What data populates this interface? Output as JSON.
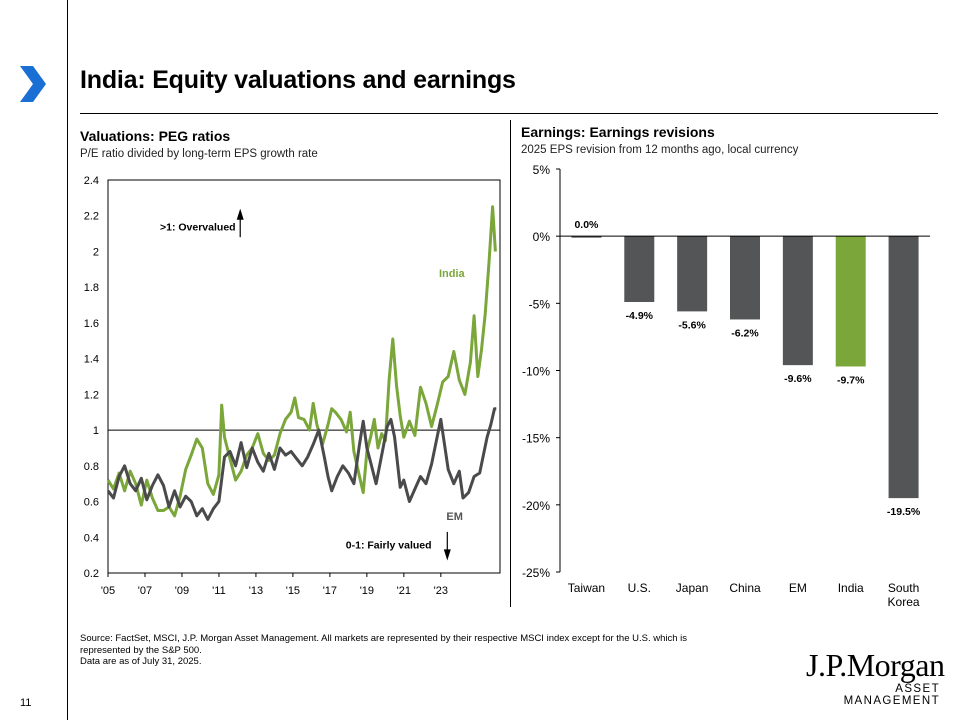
{
  "page": {
    "title": "India: Equity valuations and earnings",
    "page_number": "11",
    "source": [
      "Source: FactSet, MSCI, J.P. Morgan Asset Management. All markets are represented by their respective MSCI index except for the U.S. which is",
      "represented by the S&P 500.",
      "Data are as of July 31, 2025."
    ],
    "logo_main": "J.P.Morgan",
    "logo_sub": "ASSET MANAGEMENT",
    "colors": {
      "accent": "#1a6fd4",
      "india": "#7aa63a",
      "em": "#4a4a4c",
      "bar_grey": "#545557"
    }
  },
  "left": {
    "title": "Valuations: PEG ratios",
    "subtitle": "P/E ratio divided by long-term EPS growth rate"
  },
  "right": {
    "title": "Earnings: Earnings revisions",
    "subtitle": "2025 EPS revision from 12 months ago, local currency"
  },
  "chart_data": [
    {
      "type": "line",
      "title": "Valuations: PEG ratios",
      "ylim": [
        0.2,
        2.4
      ],
      "yticks": [
        "2.4",
        "2.2",
        "2",
        "1.8",
        "1.6",
        "1.4",
        "1.2",
        "1",
        "0.8",
        "0.6",
        "0.4",
        "0.2"
      ],
      "xlim": [
        2005,
        2026.2
      ],
      "xticks": [
        "'05",
        "'07",
        "'09",
        "'11",
        "'13",
        "'15",
        "'17",
        "'19",
        "'21",
        "'23"
      ],
      "reference_line": 1,
      "annotations": {
        "overvalued": ">1: Overvalued",
        "fairly_valued": "0-1: Fairly valued"
      },
      "series": [
        {
          "name": "India",
          "color": "#7aa63a",
          "points": [
            [
              2005.0,
              0.72
            ],
            [
              2005.3,
              0.67
            ],
            [
              2005.6,
              0.76
            ],
            [
              2005.9,
              0.66
            ],
            [
              2006.2,
              0.77
            ],
            [
              2006.5,
              0.7
            ],
            [
              2006.8,
              0.58
            ],
            [
              2007.1,
              0.72
            ],
            [
              2007.4,
              0.62
            ],
            [
              2007.7,
              0.55
            ],
            [
              2008.0,
              0.55
            ],
            [
              2008.3,
              0.57
            ],
            [
              2008.6,
              0.52
            ],
            [
              2008.9,
              0.63
            ],
            [
              2009.2,
              0.78
            ],
            [
              2009.5,
              0.86
            ],
            [
              2009.8,
              0.95
            ],
            [
              2010.1,
              0.9
            ],
            [
              2010.4,
              0.7
            ],
            [
              2010.7,
              0.64
            ],
            [
              2011.0,
              0.75
            ],
            [
              2011.15,
              1.14
            ],
            [
              2011.3,
              0.96
            ],
            [
              2011.6,
              0.84
            ],
            [
              2011.9,
              0.72
            ],
            [
              2012.2,
              0.77
            ],
            [
              2012.5,
              0.86
            ],
            [
              2012.8,
              0.9
            ],
            [
              2013.1,
              0.98
            ],
            [
              2013.4,
              0.87
            ],
            [
              2013.7,
              0.83
            ],
            [
              2014.0,
              0.86
            ],
            [
              2014.3,
              0.98
            ],
            [
              2014.6,
              1.06
            ],
            [
              2014.9,
              1.1
            ],
            [
              2015.1,
              1.18
            ],
            [
              2015.3,
              1.07
            ],
            [
              2015.6,
              1.06
            ],
            [
              2015.9,
              1.0
            ],
            [
              2016.1,
              1.15
            ],
            [
              2016.3,
              1.03
            ],
            [
              2016.6,
              0.92
            ],
            [
              2016.9,
              1.03
            ],
            [
              2017.1,
              1.12
            ],
            [
              2017.3,
              1.1
            ],
            [
              2017.6,
              1.06
            ],
            [
              2017.9,
              0.99
            ],
            [
              2018.1,
              1.1
            ],
            [
              2018.3,
              0.88
            ],
            [
              2018.6,
              0.74
            ],
            [
              2018.8,
              0.65
            ],
            [
              2019.0,
              0.88
            ],
            [
              2019.2,
              0.96
            ],
            [
              2019.4,
              1.06
            ],
            [
              2019.6,
              0.9
            ],
            [
              2019.8,
              0.98
            ],
            [
              2020.0,
              0.94
            ],
            [
              2020.2,
              1.28
            ],
            [
              2020.4,
              1.51
            ],
            [
              2020.6,
              1.25
            ],
            [
              2020.8,
              1.08
            ],
            [
              2021.0,
              0.96
            ],
            [
              2021.3,
              1.05
            ],
            [
              2021.6,
              0.97
            ],
            [
              2021.9,
              1.24
            ],
            [
              2022.2,
              1.15
            ],
            [
              2022.5,
              1.02
            ],
            [
              2022.8,
              1.14
            ],
            [
              2023.1,
              1.27
            ],
            [
              2023.4,
              1.3
            ],
            [
              2023.7,
              1.44
            ],
            [
              2024.0,
              1.28
            ],
            [
              2024.3,
              1.2
            ],
            [
              2024.6,
              1.38
            ],
            [
              2024.8,
              1.64
            ],
            [
              2025.0,
              1.3
            ],
            [
              2025.2,
              1.45
            ],
            [
              2025.4,
              1.65
            ],
            [
              2025.6,
              1.93
            ],
            [
              2025.8,
              2.25
            ],
            [
              2025.95,
              2.0
            ]
          ]
        },
        {
          "name": "EM",
          "color": "#4a4a4c",
          "points": [
            [
              2005.0,
              0.66
            ],
            [
              2005.3,
              0.62
            ],
            [
              2005.6,
              0.74
            ],
            [
              2005.9,
              0.8
            ],
            [
              2006.2,
              0.7
            ],
            [
              2006.5,
              0.66
            ],
            [
              2006.8,
              0.73
            ],
            [
              2007.1,
              0.61
            ],
            [
              2007.4,
              0.69
            ],
            [
              2007.7,
              0.75
            ],
            [
              2008.0,
              0.69
            ],
            [
              2008.3,
              0.57
            ],
            [
              2008.6,
              0.66
            ],
            [
              2008.9,
              0.57
            ],
            [
              2009.2,
              0.63
            ],
            [
              2009.5,
              0.6
            ],
            [
              2009.8,
              0.52
            ],
            [
              2010.1,
              0.56
            ],
            [
              2010.4,
              0.5
            ],
            [
              2010.7,
              0.56
            ],
            [
              2011.0,
              0.6
            ],
            [
              2011.3,
              0.85
            ],
            [
              2011.6,
              0.88
            ],
            [
              2011.9,
              0.8
            ],
            [
              2012.2,
              0.93
            ],
            [
              2012.5,
              0.79
            ],
            [
              2012.8,
              0.9
            ],
            [
              2013.1,
              0.82
            ],
            [
              2013.4,
              0.77
            ],
            [
              2013.7,
              0.87
            ],
            [
              2014.0,
              0.78
            ],
            [
              2014.3,
              0.9
            ],
            [
              2014.6,
              0.86
            ],
            [
              2014.9,
              0.88
            ],
            [
              2015.2,
              0.84
            ],
            [
              2015.5,
              0.8
            ],
            [
              2015.8,
              0.85
            ],
            [
              2016.1,
              0.92
            ],
            [
              2016.4,
              1.0
            ],
            [
              2016.7,
              0.85
            ],
            [
              2016.9,
              0.74
            ],
            [
              2017.1,
              0.66
            ],
            [
              2017.4,
              0.74
            ],
            [
              2017.7,
              0.8
            ],
            [
              2018.0,
              0.76
            ],
            [
              2018.3,
              0.7
            ],
            [
              2018.6,
              0.92
            ],
            [
              2018.8,
              1.05
            ],
            [
              2019.0,
              0.9
            ],
            [
              2019.2,
              0.82
            ],
            [
              2019.5,
              0.7
            ],
            [
              2019.8,
              0.86
            ],
            [
              2020.1,
              1.02
            ],
            [
              2020.3,
              1.06
            ],
            [
              2020.5,
              0.96
            ],
            [
              2020.8,
              0.68
            ],
            [
              2021.0,
              0.72
            ],
            [
              2021.3,
              0.6
            ],
            [
              2021.6,
              0.67
            ],
            [
              2021.9,
              0.74
            ],
            [
              2022.2,
              0.7
            ],
            [
              2022.5,
              0.81
            ],
            [
              2022.8,
              0.96
            ],
            [
              2023.0,
              1.06
            ],
            [
              2023.2,
              0.92
            ],
            [
              2023.4,
              0.78
            ],
            [
              2023.7,
              0.7
            ],
            [
              2024.0,
              0.77
            ],
            [
              2024.2,
              0.62
            ],
            [
              2024.5,
              0.65
            ],
            [
              2024.8,
              0.74
            ],
            [
              2025.1,
              0.76
            ],
            [
              2025.3,
              0.86
            ],
            [
              2025.5,
              0.96
            ],
            [
              2025.7,
              1.03
            ],
            [
              2025.9,
              1.12
            ],
            [
              2026.0,
              1.12
            ]
          ]
        }
      ]
    },
    {
      "type": "bar",
      "title": "Earnings: Earnings revisions",
      "ylim": [
        -25,
        5
      ],
      "yticks": [
        "5%",
        "0%",
        "-5%",
        "-10%",
        "-15%",
        "-20%",
        "-25%"
      ],
      "categories": [
        "Taiwan",
        "U.S.",
        "Japan",
        "China",
        "EM",
        "India",
        "South Korea"
      ],
      "values": [
        0.0,
        -4.9,
        -5.6,
        -6.2,
        -9.6,
        -9.7,
        -19.5
      ],
      "labels": [
        "0.0%",
        "-4.9%",
        "-5.6%",
        "-6.2%",
        "-9.6%",
        "-9.7%",
        "-19.5%"
      ],
      "highlight": "India"
    }
  ]
}
